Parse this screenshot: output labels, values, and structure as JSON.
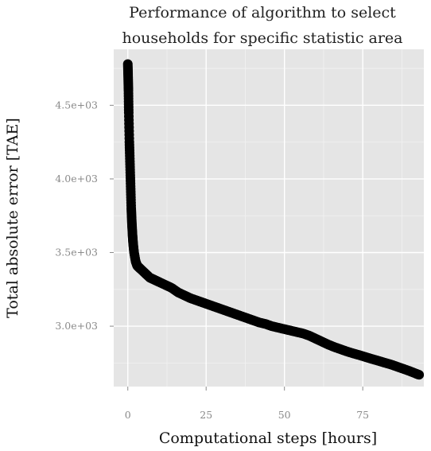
{
  "chart_data": {
    "type": "scatter",
    "title": [
      "Performance of algorithm to select",
      "households for specific statistic area"
    ],
    "xlabel": "Computational steps [hours]",
    "ylabel": "Total absolute error [TAE]",
    "xlim": [
      -4.5,
      94.5
    ],
    "ylim": [
      2590,
      4880
    ],
    "xticks": [
      0,
      25,
      50,
      75
    ],
    "xtick_labels": [
      "0",
      "25",
      "50",
      "75"
    ],
    "yticks": [
      3000,
      3500,
      4000,
      4500
    ],
    "ytick_labels": [
      "3.0e+03",
      "3.5e+03",
      "4.0e+03",
      "4.5e+03"
    ],
    "grid": true,
    "colors": {
      "panel": "#e5e5e5",
      "grid_major": "#ffffff",
      "grid_minor": "#f2f2f2",
      "points": "#000000"
    },
    "series": [
      {
        "x": [
          0,
          0.1,
          0.2,
          0.3,
          0.5,
          0.7,
          0.9,
          1.1,
          1.3,
          1.5,
          1.7,
          2.0,
          2.5,
          3.0,
          3.5,
          4,
          5,
          6,
          7,
          8,
          9,
          10,
          12,
          14,
          16,
          18,
          20,
          22,
          24,
          26,
          28,
          30,
          32,
          34,
          36,
          38,
          40,
          42,
          44,
          46,
          48,
          50,
          52,
          54,
          56,
          58,
          60,
          62,
          64,
          66,
          68,
          70,
          72,
          74,
          76,
          78,
          80,
          82,
          84,
          86,
          88,
          90,
          92,
          93
        ],
        "y": [
          4780,
          4700,
          4600,
          4450,
          4250,
          4100,
          3950,
          3800,
          3700,
          3620,
          3560,
          3500,
          3440,
          3410,
          3400,
          3390,
          3370,
          3350,
          3330,
          3320,
          3310,
          3300,
          3280,
          3260,
          3230,
          3210,
          3190,
          3175,
          3160,
          3145,
          3130,
          3115,
          3100,
          3085,
          3070,
          3055,
          3040,
          3025,
          3015,
          3000,
          2990,
          2980,
          2970,
          2960,
          2950,
          2935,
          2915,
          2895,
          2875,
          2858,
          2843,
          2828,
          2815,
          2803,
          2790,
          2777,
          2765,
          2752,
          2740,
          2725,
          2710,
          2695,
          2678,
          2670
        ]
      }
    ]
  }
}
